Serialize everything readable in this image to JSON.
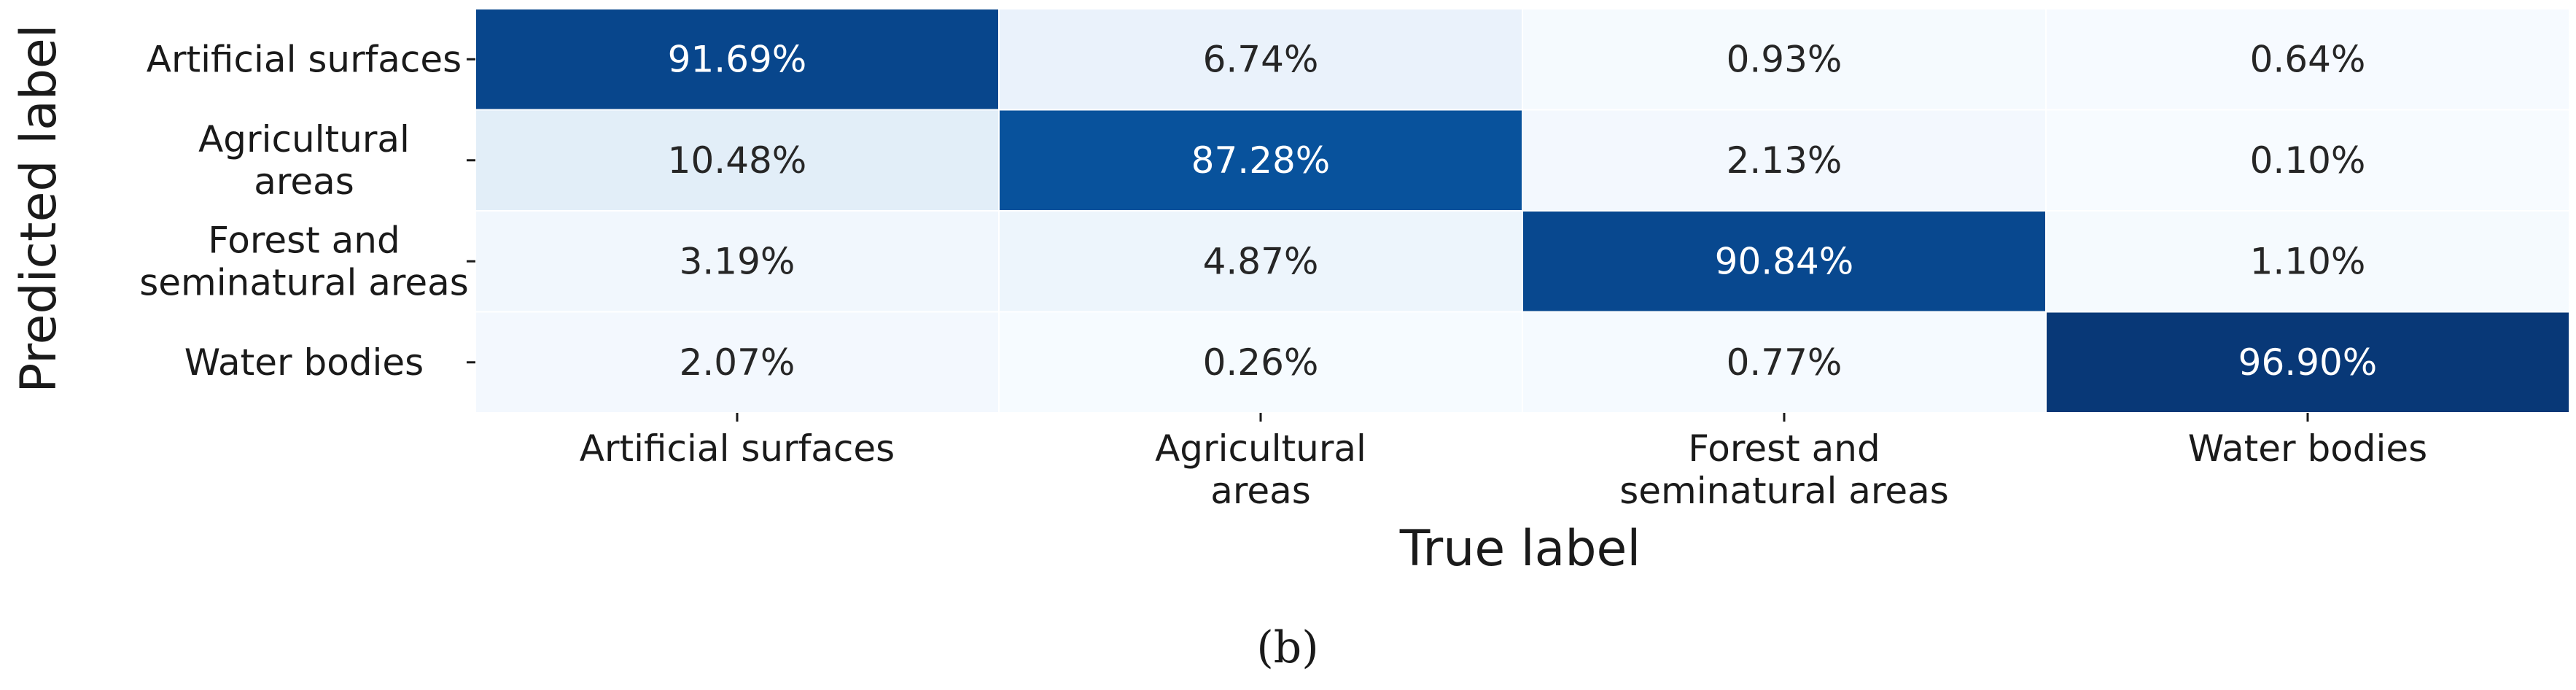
{
  "chart_data": {
    "type": "heatmap",
    "title": "",
    "xlabel": "True label",
    "ylabel": "Predicted label",
    "x_categories": [
      [
        "Artificial surfaces"
      ],
      [
        "Agricultural",
        "areas"
      ],
      [
        "Forest and",
        "seminatural areas"
      ],
      [
        "Water bodies"
      ]
    ],
    "y_categories": [
      [
        "Artificial surfaces"
      ],
      [
        "Agricultural",
        "areas"
      ],
      [
        "Forest and",
        "seminatural areas"
      ],
      [
        "Water bodies"
      ]
    ],
    "values": [
      [
        91.69,
        6.74,
        0.93,
        0.64
      ],
      [
        10.48,
        87.28,
        2.13,
        0.1
      ],
      [
        3.19,
        4.87,
        90.84,
        1.1
      ],
      [
        2.07,
        0.26,
        0.77,
        96.9
      ]
    ],
    "labels": [
      [
        "91.69%",
        "6.74%",
        "0.93%",
        "0.64%"
      ],
      [
        "10.48%",
        "87.28%",
        "2.13%",
        "0.10%"
      ],
      [
        "3.19%",
        "4.87%",
        "90.84%",
        "1.10%"
      ],
      [
        "2.07%",
        "0.26%",
        "0.77%",
        "96.90%"
      ]
    ],
    "value_unit": "%",
    "colormap": "Blues",
    "color_range": [
      0,
      100
    ],
    "colorbar": false,
    "grid": false
  },
  "caption": "(b)"
}
